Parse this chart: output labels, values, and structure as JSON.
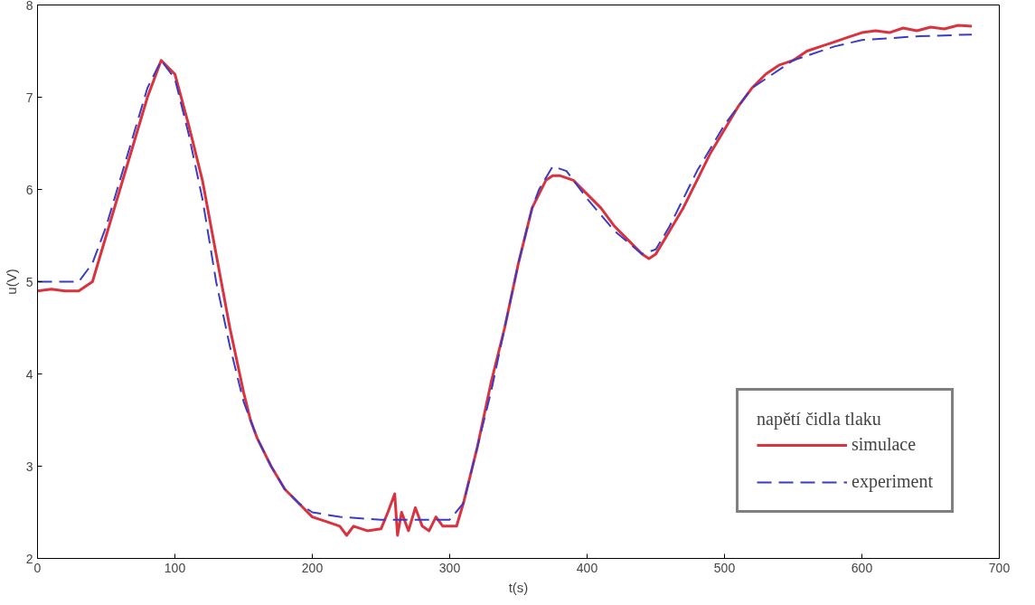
{
  "chart_data": {
    "type": "line",
    "xlabel": "t(s)",
    "ylabel": "u(V)",
    "legend_title": "napětí čidla tlaku",
    "xlim": [
      0,
      700
    ],
    "ylim": [
      2,
      8
    ],
    "xticks": [
      0,
      100,
      200,
      300,
      400,
      500,
      600,
      700
    ],
    "yticks": [
      2,
      3,
      4,
      5,
      6,
      7,
      8
    ],
    "grid": false,
    "legend": "bottom right",
    "series": [
      {
        "name": "simulace",
        "color": "#d9333f",
        "line_style": "solid",
        "x": [
          0,
          10,
          20,
          30,
          40,
          50,
          60,
          70,
          80,
          90,
          100,
          110,
          120,
          130,
          140,
          150,
          155,
          160,
          170,
          180,
          190,
          200,
          210,
          220,
          225,
          230,
          240,
          250,
          255,
          260,
          262,
          265,
          270,
          275,
          280,
          285,
          290,
          295,
          300,
          305,
          310,
          320,
          330,
          340,
          350,
          360,
          370,
          375,
          380,
          390,
          400,
          410,
          420,
          430,
          440,
          445,
          450,
          460,
          470,
          480,
          490,
          500,
          510,
          520,
          530,
          540,
          550,
          560,
          570,
          580,
          590,
          600,
          610,
          620,
          630,
          640,
          650,
          660,
          670,
          680
        ],
        "values": [
          4.9,
          4.92,
          4.9,
          4.9,
          5.0,
          5.5,
          6.0,
          6.5,
          7.0,
          7.4,
          7.25,
          6.7,
          6.1,
          5.3,
          4.5,
          3.8,
          3.5,
          3.3,
          3.0,
          2.75,
          2.6,
          2.45,
          2.4,
          2.35,
          2.25,
          2.35,
          2.3,
          2.32,
          2.5,
          2.7,
          2.25,
          2.5,
          2.3,
          2.55,
          2.35,
          2.3,
          2.45,
          2.35,
          2.35,
          2.35,
          2.6,
          3.2,
          3.9,
          4.5,
          5.2,
          5.8,
          6.1,
          6.15,
          6.15,
          6.1,
          5.95,
          5.8,
          5.6,
          5.45,
          5.3,
          5.25,
          5.3,
          5.55,
          5.8,
          6.1,
          6.4,
          6.65,
          6.9,
          7.1,
          7.25,
          7.35,
          7.4,
          7.5,
          7.55,
          7.6,
          7.65,
          7.7,
          7.72,
          7.7,
          7.75,
          7.72,
          7.76,
          7.74,
          7.78,
          7.77
        ]
      },
      {
        "name": "experiment",
        "color": "#3b3bc4",
        "line_style": "dashed",
        "x": [
          0,
          10,
          20,
          30,
          40,
          50,
          60,
          70,
          80,
          90,
          100,
          110,
          120,
          130,
          140,
          150,
          160,
          170,
          180,
          190,
          200,
          220,
          250,
          280,
          300,
          310,
          320,
          330,
          340,
          350,
          360,
          365,
          375,
          385,
          400,
          420,
          440,
          450,
          460,
          470,
          480,
          500,
          520,
          550,
          580,
          600,
          640,
          680
        ],
        "values": [
          5.0,
          5.0,
          5.0,
          5.0,
          5.2,
          5.6,
          6.1,
          6.6,
          7.1,
          7.4,
          7.2,
          6.6,
          5.9,
          5.0,
          4.3,
          3.7,
          3.3,
          3.0,
          2.75,
          2.6,
          2.5,
          2.45,
          2.42,
          2.42,
          2.42,
          2.6,
          3.2,
          3.8,
          4.5,
          5.2,
          5.8,
          6.0,
          6.25,
          6.2,
          5.9,
          5.55,
          5.3,
          5.35,
          5.6,
          5.9,
          6.2,
          6.7,
          7.1,
          7.4,
          7.55,
          7.62,
          7.66,
          7.68
        ]
      }
    ]
  }
}
